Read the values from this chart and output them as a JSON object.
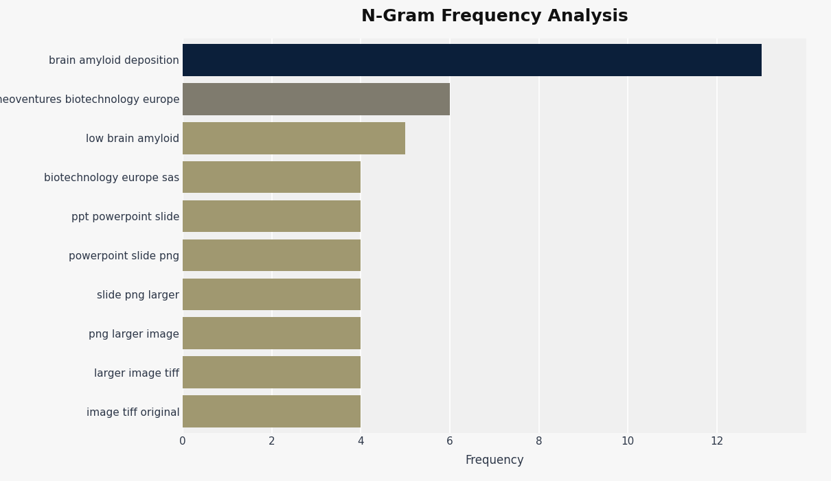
{
  "title": "N-Gram Frequency Analysis",
  "categories": [
    "brain amyloid deposition",
    "neoventures biotechnology europe",
    "low brain amyloid",
    "biotechnology europe sas",
    "ppt powerpoint slide",
    "powerpoint slide png",
    "slide png larger",
    "png larger image",
    "larger image tiff",
    "image tiff original"
  ],
  "values": [
    13,
    6,
    5,
    4,
    4,
    4,
    4,
    4,
    4,
    4
  ],
  "bar_colors": [
    "#0b1f3a",
    "#7f7b6e",
    "#a09870",
    "#a09870",
    "#a09870",
    "#a09870",
    "#a09870",
    "#a09870",
    "#a09870",
    "#a09870"
  ],
  "xlabel": "Frequency",
  "ylabel": "",
  "xlim": [
    0,
    14
  ],
  "xticks": [
    0,
    2,
    4,
    6,
    8,
    10,
    12
  ],
  "background_color": "#f7f7f7",
  "plot_bg_color": "#f0f0f0",
  "title_fontsize": 18,
  "label_fontsize": 11,
  "tick_fontsize": 11,
  "bar_height": 0.82
}
